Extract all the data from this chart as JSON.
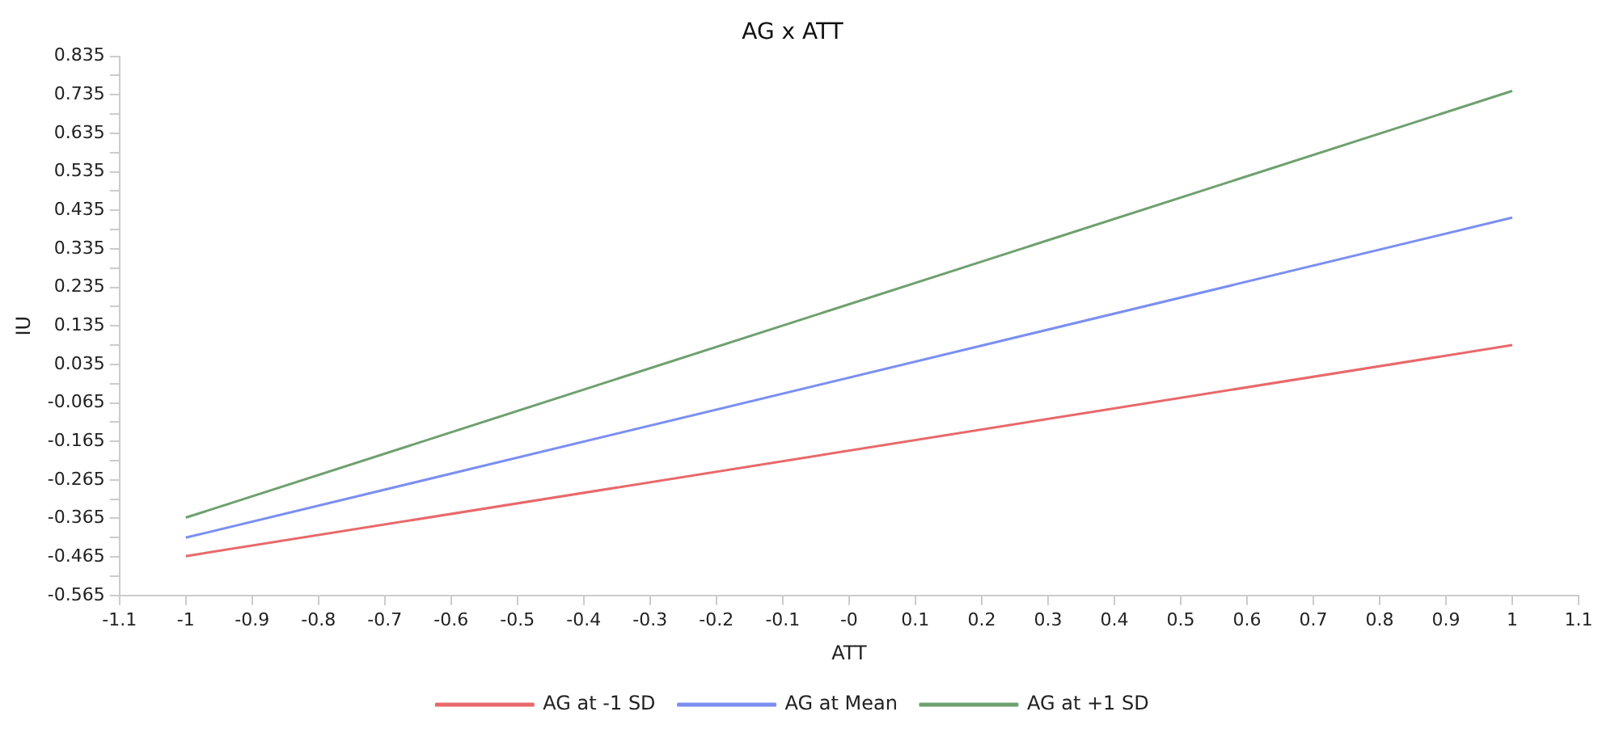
{
  "chart_data": {
    "type": "line",
    "title": "AG x ATT",
    "xlabel": "ATT",
    "ylabel": "IU",
    "x": [
      -1,
      1
    ],
    "series": [
      {
        "name": "AG at -1 SD",
        "color": "#e8696b",
        "values": [
          -0.463,
          0.085
        ]
      },
      {
        "name": "AG at Mean",
        "color": "#7b8ff0",
        "values": [
          -0.415,
          0.416
        ]
      },
      {
        "name": "AG at +1 SD",
        "color": "#6fa06f",
        "values": [
          -0.363,
          0.745
        ]
      }
    ],
    "xlim": [
      -1.1,
      1.1
    ],
    "xticks": [
      -1.1,
      -1,
      -0.9,
      -0.8,
      -0.7,
      -0.6,
      -0.5,
      -0.4,
      -0.3,
      -0.2,
      -0.1,
      {
        "value": 0,
        "label": "-0"
      },
      0.1,
      0.2,
      0.3,
      0.4,
      0.5,
      0.6,
      0.7,
      0.8,
      0.9,
      1,
      1.1
    ],
    "ylim": [
      -0.565,
      0.835
    ],
    "yticks": [
      -0.565,
      {
        "value": -0.515,
        "label": null
      },
      -0.465,
      {
        "value": -0.415,
        "label": null
      },
      -0.365,
      {
        "value": -0.315,
        "label": null
      },
      -0.265,
      {
        "value": -0.215,
        "label": null
      },
      -0.165,
      {
        "value": -0.115,
        "label": null
      },
      -0.065,
      {
        "value": -0.015,
        "label": null
      },
      0.035,
      {
        "value": 0.085,
        "label": null
      },
      0.135,
      {
        "value": 0.185,
        "label": null
      },
      0.235,
      {
        "value": 0.285,
        "label": null
      },
      0.335,
      {
        "value": 0.385,
        "label": null
      },
      0.435,
      {
        "value": 0.485,
        "label": null
      },
      0.535,
      {
        "value": 0.585,
        "label": null
      },
      0.635,
      {
        "value": 0.685,
        "label": null
      },
      0.735,
      {
        "value": 0.785,
        "label": null
      },
      0.835
    ],
    "grid": false,
    "legend": "bottom",
    "marker": "none",
    "line_style": "solid"
  }
}
